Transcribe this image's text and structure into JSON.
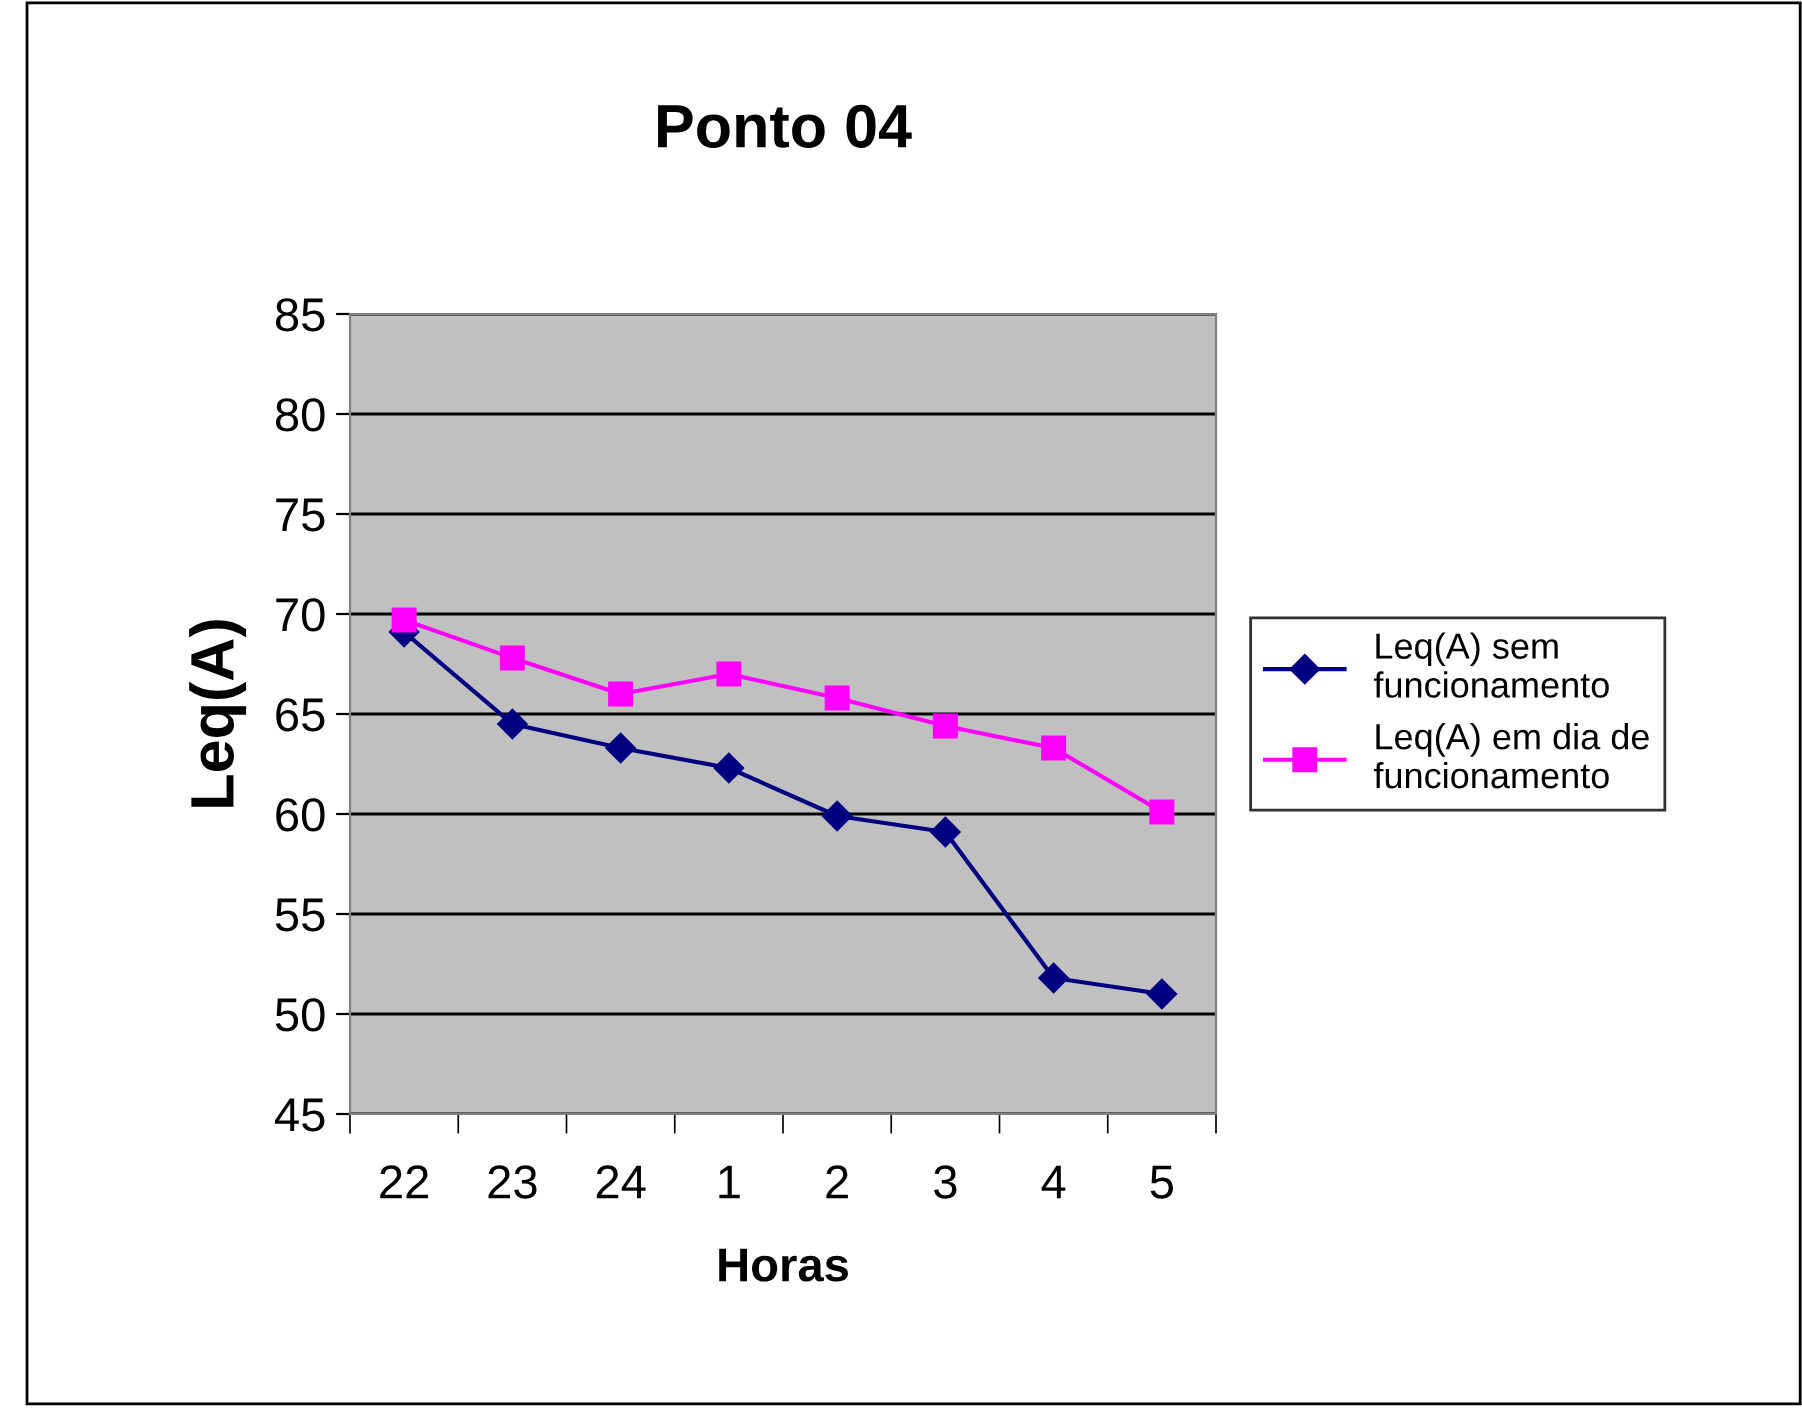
{
  "chart_data": {
    "type": "line",
    "title": "Ponto 04",
    "xlabel": "Horas",
    "ylabel": "Leq(A)",
    "categories": [
      "22",
      "23",
      "24",
      "1",
      "2",
      "3",
      "4",
      "5"
    ],
    "series": [
      {
        "name": "Leq(A) sem funcionamento",
        "color": "#000080",
        "marker": "diamond",
        "values": [
          69.1,
          64.5,
          63.3,
          62.3,
          59.9,
          59.1,
          51.8,
          51.0
        ]
      },
      {
        "name": "Leq(A) em dia de funcionamento",
        "color": "#ff00ff",
        "marker": "square",
        "values": [
          69.7,
          67.8,
          66.0,
          67.0,
          65.8,
          64.4,
          63.3,
          60.1
        ]
      }
    ],
    "ylim": [
      45,
      85
    ],
    "yticks": [
      45,
      50,
      55,
      60,
      65,
      70,
      75,
      80,
      85
    ],
    "grid": "y",
    "legend": "right",
    "line_style": "solid"
  }
}
